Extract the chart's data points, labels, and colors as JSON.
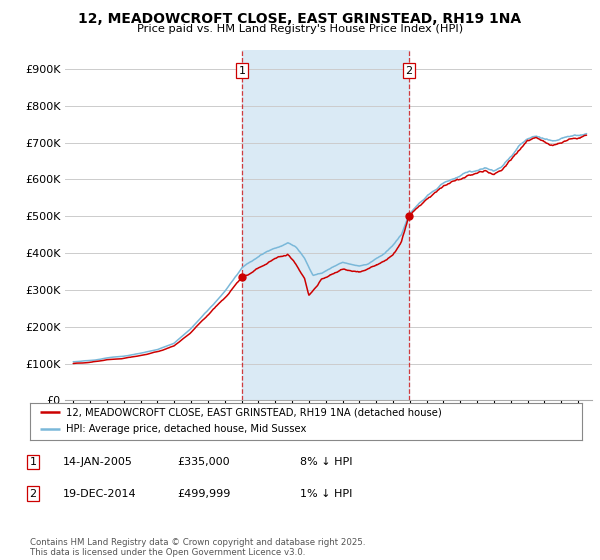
{
  "title": "12, MEADOWCROFT CLOSE, EAST GRINSTEAD, RH19 1NA",
  "subtitle": "Price paid vs. HM Land Registry's House Price Index (HPI)",
  "ylim": [
    0,
    950000
  ],
  "yticks": [
    0,
    100000,
    200000,
    300000,
    400000,
    500000,
    600000,
    700000,
    800000,
    900000
  ],
  "ytick_labels": [
    "£0",
    "£100K",
    "£200K",
    "£300K",
    "£400K",
    "£500K",
    "£600K",
    "£700K",
    "£800K",
    "£900K"
  ],
  "hpi_color": "#7ab8d9",
  "price_color": "#cc0000",
  "vline_color": "#cc0000",
  "background_color": "#ffffff",
  "grid_color": "#cccccc",
  "span_color": "#daeaf5",
  "legend_entries": [
    "12, MEADOWCROFT CLOSE, EAST GRINSTEAD, RH19 1NA (detached house)",
    "HPI: Average price, detached house, Mid Sussex"
  ],
  "sale1_x": 2005.04,
  "sale1_price": 335000,
  "sale2_x": 2014.96,
  "sale2_price": 499999,
  "sale1": {
    "date": "14-JAN-2005",
    "price": "£335,000",
    "pct": "8% ↓ HPI"
  },
  "sale2": {
    "date": "19-DEC-2014",
    "price": "£499,999",
    "pct": "1% ↓ HPI"
  },
  "footer": "Contains HM Land Registry data © Crown copyright and database right 2025.\nThis data is licensed under the Open Government Licence v3.0.",
  "xlim_left": 1994.5,
  "xlim_right": 2025.8
}
